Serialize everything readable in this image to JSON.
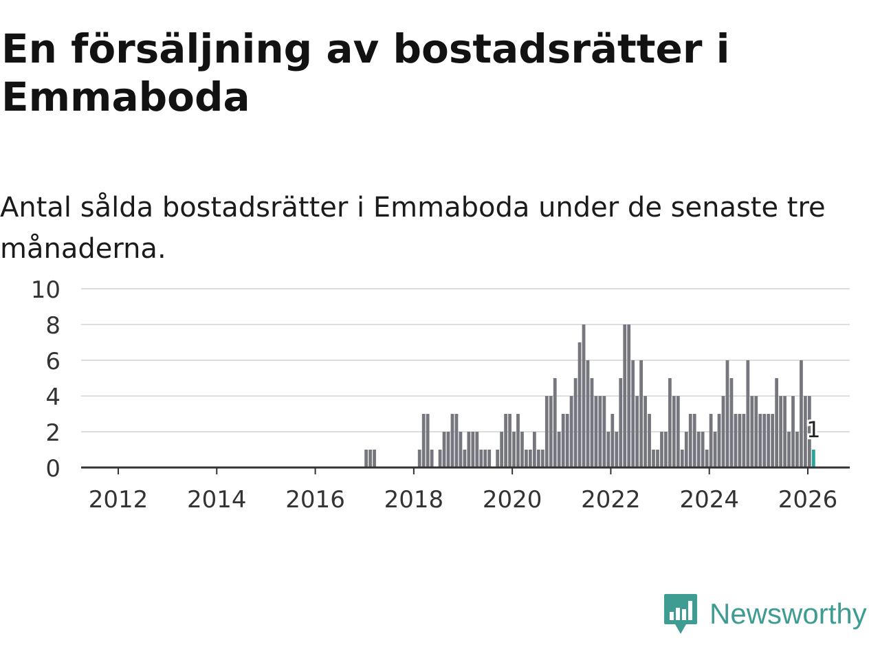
{
  "title": "En försäljning av bostadsrätter i Emmaboda",
  "subtitle": "Antal sålda bostadsrätter i Emmaboda under de senaste tre månaderna.",
  "brand": {
    "name": "Newsworthy",
    "color": "#3f9c93"
  },
  "colors": {
    "bar": "#76767e",
    "highlight": "#2aa39a",
    "grid": "#dddddd",
    "axis": "#333333"
  },
  "chart_data": {
    "type": "bar",
    "title": "En försäljning av bostadsrätter i Emmaboda",
    "xlabel": "",
    "ylabel": "",
    "ylim": [
      0,
      10
    ],
    "y_ticks": [
      0,
      2,
      4,
      6,
      8,
      10
    ],
    "x_ticks": [
      "2012",
      "2014",
      "2016",
      "2018",
      "2020",
      "2022",
      "2024",
      "2026"
    ],
    "start": "2011-03",
    "end": "2026-01",
    "highlight_label": "1",
    "values": [
      0,
      0,
      0,
      0,
      0,
      0,
      0,
      0,
      0,
      0,
      0,
      0,
      0,
      0,
      0,
      0,
      0,
      0,
      0,
      0,
      0,
      0,
      0,
      0,
      0,
      0,
      0,
      0,
      0,
      0,
      0,
      0,
      0,
      0,
      0,
      0,
      0,
      0,
      0,
      0,
      0,
      0,
      0,
      0,
      0,
      0,
      0,
      0,
      0,
      0,
      0,
      0,
      0,
      0,
      0,
      0,
      0,
      0,
      0,
      0,
      0,
      0,
      0,
      0,
      0,
      0,
      0,
      0,
      0,
      0,
      1,
      1,
      1,
      0,
      0,
      0,
      0,
      0,
      0,
      0,
      0,
      0,
      0,
      1,
      3,
      3,
      1,
      0,
      1,
      2,
      2,
      3,
      3,
      2,
      1,
      2,
      2,
      2,
      1,
      1,
      1,
      0,
      1,
      2,
      3,
      3,
      2,
      3,
      2,
      1,
      1,
      2,
      1,
      1,
      4,
      4,
      5,
      2,
      3,
      3,
      4,
      5,
      7,
      8,
      6,
      5,
      4,
      4,
      4,
      2,
      3,
      2,
      5,
      8,
      8,
      6,
      4,
      6,
      4,
      3,
      1,
      1,
      2,
      2,
      5,
      4,
      4,
      1,
      2,
      3,
      3,
      2,
      2,
      1,
      3,
      2,
      3,
      4,
      6,
      5,
      3,
      3,
      3,
      6,
      4,
      4,
      3,
      3,
      3,
      3,
      5,
      4,
      4,
      2,
      4,
      2,
      6,
      4,
      4,
      1
    ]
  }
}
